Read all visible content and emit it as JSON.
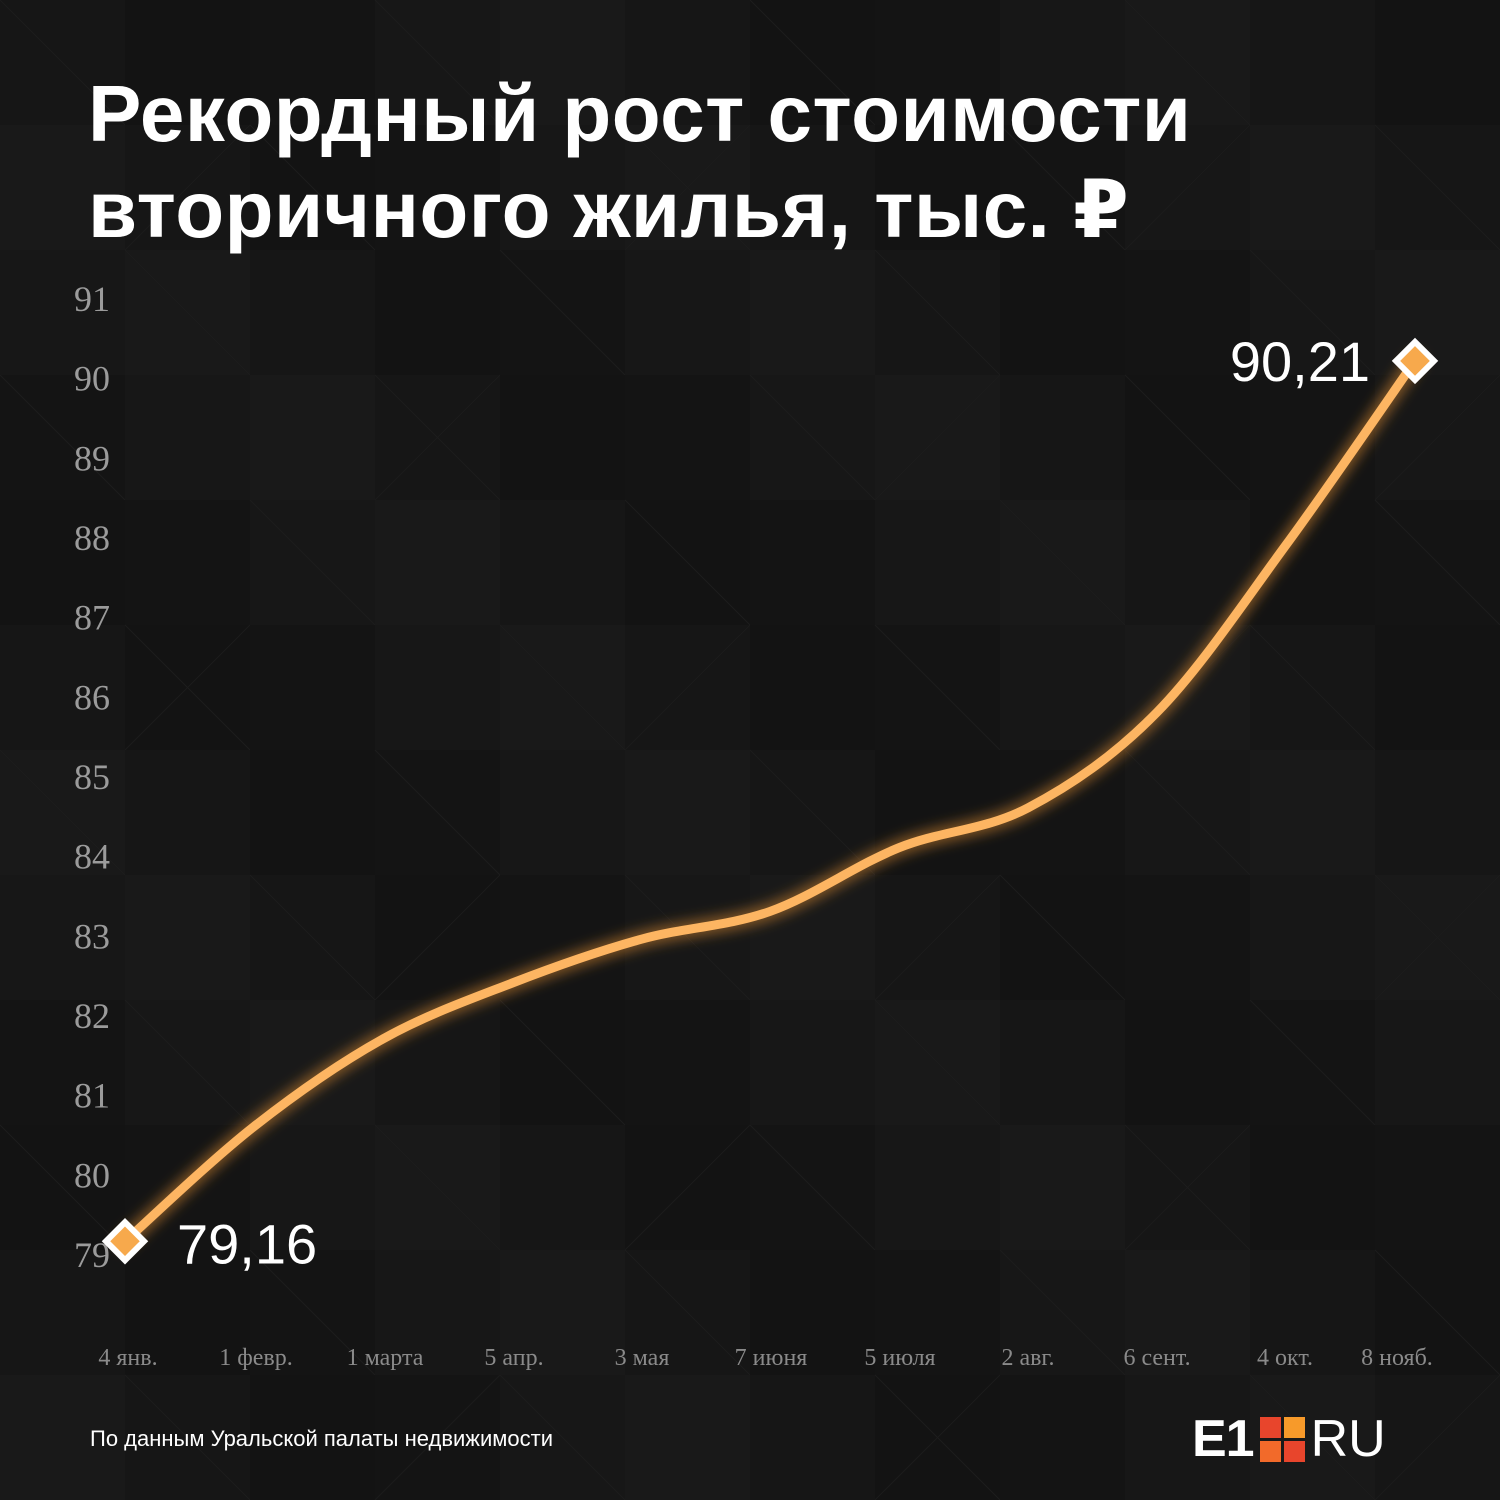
{
  "header": {
    "title_line1": "Рекордный рост стоимости",
    "title_line2": "вторичного жилья, тыс. ₽"
  },
  "footer": {
    "source": "По данным Уральской палаты недвижимости",
    "logo": {
      "part1": "E1",
      "part2": "RU",
      "square_colors": [
        "#e8452c",
        "#f79a2a",
        "#f26a2a",
        "#e8452c"
      ]
    }
  },
  "colors": {
    "background": "#121212",
    "line": "#fdb562",
    "line_glow": "#f59a30",
    "marker_fill": "#f7a94c",
    "marker_stroke": "#ffffff",
    "tick_text": "#9b9b9b",
    "axis_text": "#8a8a8a"
  },
  "chart_data": {
    "type": "line",
    "title": "Рекордный рост стоимости вторичного жилья, тыс. ₽",
    "x_labels": [
      "4 янв.",
      "1 февр.",
      "1 марта",
      "5 апр.",
      "3 мая",
      "7 июня",
      "5 июля",
      "2 авг.",
      "6 сент.",
      "4 окт.",
      "8 нояб."
    ],
    "series": [
      {
        "values": [
          79.16,
          80.6,
          81.7,
          82.4,
          82.95,
          83.3,
          84.1,
          84.6,
          85.8,
          87.9,
          90.21
        ]
      }
    ],
    "annotations": [
      {
        "index": 0,
        "label": "79,16"
      },
      {
        "index": 10,
        "label": "90,21"
      }
    ],
    "y_ticks": [
      "79",
      "80",
      "81",
      "82",
      "83",
      "84",
      "85",
      "86",
      "87",
      "88",
      "89",
      "90",
      "91"
    ],
    "ylim": [
      79,
      91
    ],
    "grid": false,
    "legend": "none"
  }
}
